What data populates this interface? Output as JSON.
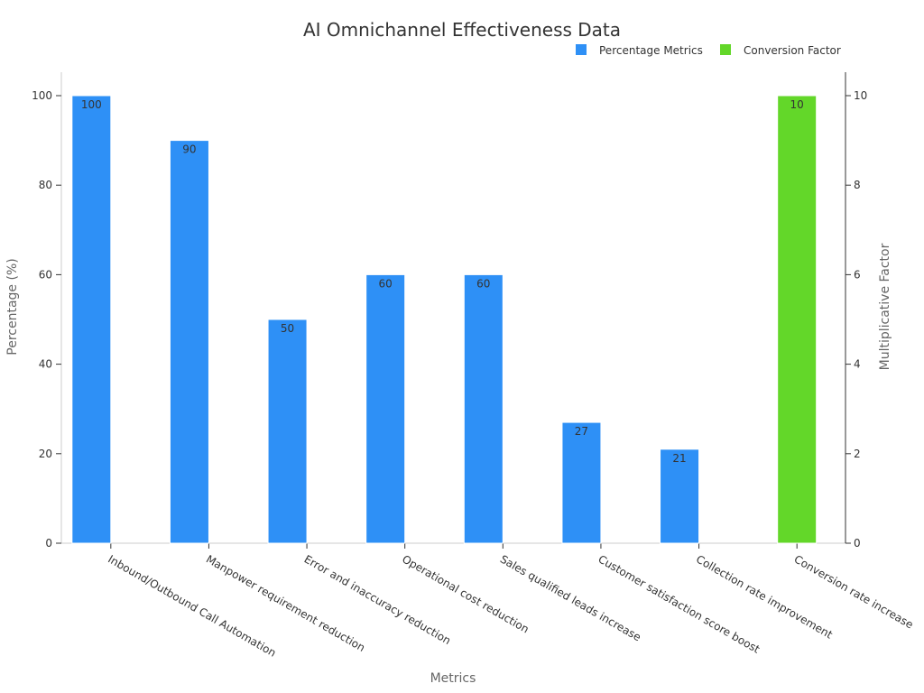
{
  "chart_data": {
    "type": "bar",
    "title": "AI Omnichannel Effectiveness Data",
    "xlabel": "Metrics",
    "ylabel": "Percentage (%)",
    "y2label": "Multiplicative Factor",
    "categories": [
      "Inbound/Outbound Call Automation",
      "Manpower requirement reduction",
      "Error and inaccuracy reduction",
      "Operational cost reduction",
      "Sales qualified leads increase",
      "Customer satisfaction score boost",
      "Collection rate improvement",
      "Conversion rate increase"
    ],
    "series": [
      {
        "name": "Percentage Metrics",
        "axis": "left",
        "color": "#2e90f6",
        "values": [
          100,
          90,
          50,
          60,
          60,
          27,
          21,
          null
        ]
      },
      {
        "name": "Conversion Factor",
        "axis": "right",
        "color": "#63d729",
        "values": [
          null,
          null,
          null,
          null,
          null,
          null,
          null,
          10
        ]
      }
    ],
    "ylim": [
      0,
      100
    ],
    "y_ticks": [
      0,
      20,
      40,
      60,
      80,
      100
    ],
    "y2lim": [
      0,
      10
    ],
    "y2_ticks": [
      0,
      2,
      4,
      6,
      8,
      10
    ],
    "legend_position": "top-right",
    "grid": false
  }
}
